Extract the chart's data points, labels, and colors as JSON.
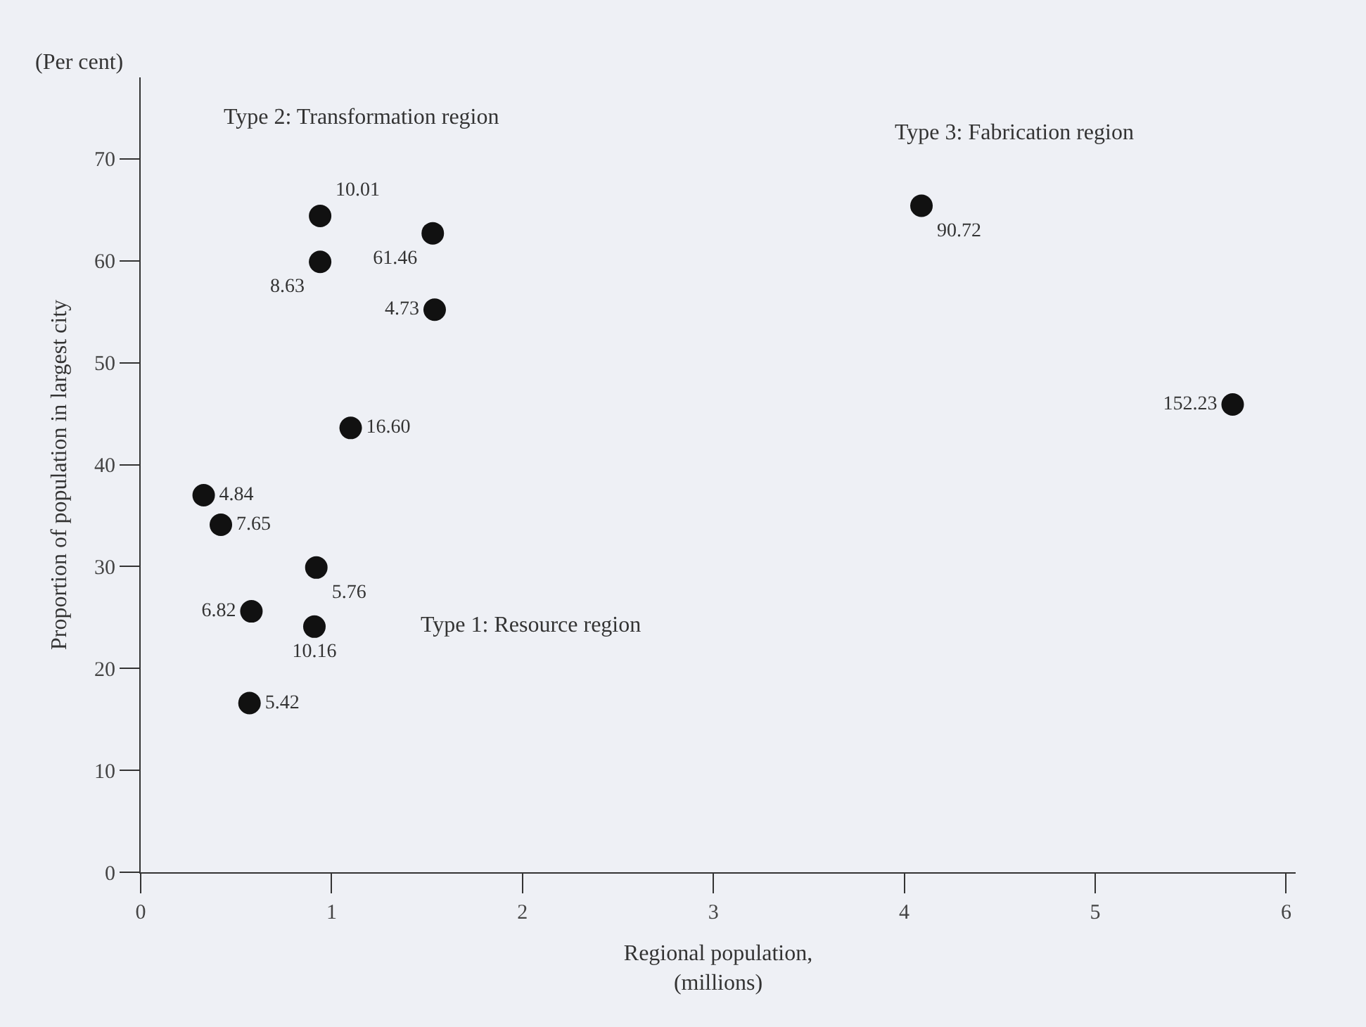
{
  "chart_data": {
    "type": "scatter",
    "xlabel": "Regional population,\n(millions)",
    "ylabel": "Proportion of population in largest city",
    "xlim": [
      0,
      6.05
    ],
    "xticks": [
      0,
      1,
      2,
      3,
      4,
      5,
      6
    ],
    "ylim": [
      0,
      78
    ],
    "yticks": [
      0,
      10,
      20,
      30,
      40,
      50,
      60,
      70
    ],
    "grid": false,
    "legend": false,
    "marker": "circle",
    "series": [
      {
        "name": "4.84",
        "color": "#111111",
        "x": [
          0.33
        ],
        "values": [
          37.0
        ]
      },
      {
        "name": "7.65",
        "color": "#111111",
        "x": [
          0.42
        ],
        "values": [
          34.1
        ]
      },
      {
        "name": "5.76",
        "color": "#111111",
        "x": [
          0.92
        ],
        "values": [
          29.9
        ]
      },
      {
        "name": "6.82",
        "color": "#111111",
        "x": [
          0.58
        ],
        "values": [
          25.6
        ]
      },
      {
        "name": "10.16",
        "color": "#111111",
        "x": [
          0.91
        ],
        "values": [
          24.1
        ]
      },
      {
        "name": "5.42",
        "color": "#111111",
        "x": [
          0.57
        ],
        "values": [
          16.6
        ]
      },
      {
        "name": "10.01",
        "color": "#111111",
        "x": [
          0.94
        ],
        "values": [
          64.4
        ]
      },
      {
        "name": "61.46",
        "color": "#111111",
        "x": [
          1.53
        ],
        "values": [
          62.7
        ]
      },
      {
        "name": "8.63",
        "color": "#111111",
        "x": [
          0.94
        ],
        "values": [
          59.9
        ]
      },
      {
        "name": "4.73",
        "color": "#111111",
        "x": [
          1.54
        ],
        "values": [
          55.2
        ]
      },
      {
        "name": "16.60",
        "color": "#111111",
        "x": [
          1.1
        ],
        "values": [
          43.6
        ]
      },
      {
        "name": "90.72",
        "color": "#111111",
        "x": [
          4.09
        ],
        "values": [
          65.4
        ]
      },
      {
        "name": "152.23",
        "color": "#111111",
        "x": [
          5.72
        ],
        "values": [
          45.9
        ]
      }
    ],
    "annotations": [
      "(Per cent)",
      "Type 1: Resource region",
      "Type 2: Transformation region",
      "Type 3: Fabrication region"
    ]
  }
}
